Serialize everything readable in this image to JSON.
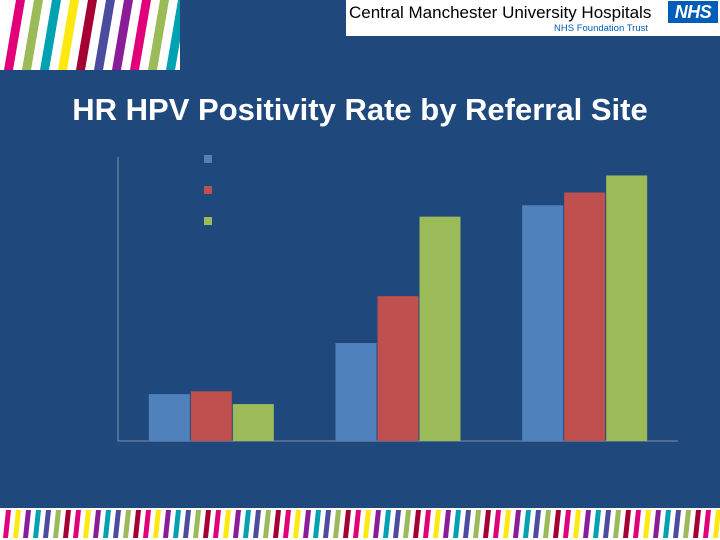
{
  "header": {
    "organization": "Central Manchester University Hospitals",
    "nhs_mark": "NHS",
    "trust": "NHS Foundation Trust"
  },
  "slide": {
    "title": "HR HPV Positivity Rate by Referral Site"
  },
  "colors": {
    "background": "#1f497d",
    "series": [
      "#4f81bd",
      "#c0504d",
      "#9bbb59"
    ],
    "stripes": [
      "#e2007a",
      "#9bbb59",
      "#00a1b0",
      "#fde910",
      "#a50034",
      "#4b4ba0",
      "#8a1c9a"
    ]
  },
  "chart_data": {
    "type": "bar",
    "title": "",
    "xlabel": "",
    "ylabel": "",
    "ylim": [
      0,
      100
    ],
    "grid": false,
    "legend": "top-left",
    "categories": [
      "",
      "",
      ""
    ],
    "series": [
      {
        "values": [
          16.5,
          34.5,
          83
        ]
      },
      {
        "values": [
          17.5,
          51,
          87.5
        ]
      },
      {
        "values": [
          13,
          79,
          93.5
        ]
      }
    ]
  }
}
